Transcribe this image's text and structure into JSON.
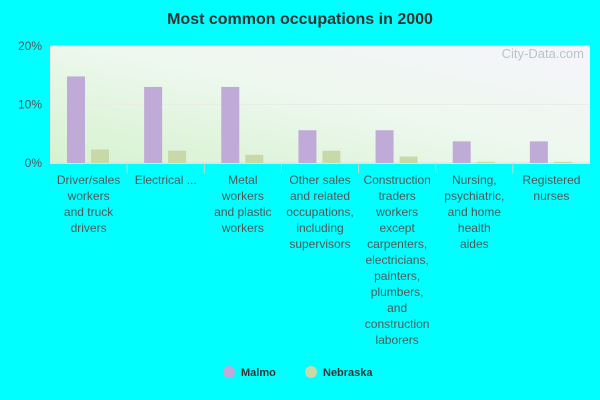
{
  "chart_data": {
    "type": "bar",
    "title": "Most common occupations in 2000",
    "watermark": "City-Data.com",
    "categories": [
      [
        "Driver/sales",
        "workers",
        "and truck",
        "drivers"
      ],
      [
        "Electrical ..."
      ],
      [
        "Metal",
        "workers",
        "and plastic",
        "workers"
      ],
      [
        "Other sales",
        "and related",
        "occupations,",
        "including",
        "supervisors"
      ],
      [
        "Construction",
        "traders",
        "workers",
        "except",
        "carpenters,",
        "electricians,",
        "painters,",
        "plumbers,",
        "and",
        "construction",
        "laborers"
      ],
      [
        "Nursing,",
        "psychiatric,",
        "and home",
        "health",
        "aides"
      ],
      [
        "Registered",
        "nurses"
      ]
    ],
    "series": [
      {
        "name": "Malmo",
        "color": "#c0aad8",
        "values": [
          14.8,
          13.0,
          13.0,
          5.6,
          5.6,
          3.7,
          3.7
        ]
      },
      {
        "name": "Nebraska",
        "color": "#c8d8a8",
        "values": [
          2.3,
          2.1,
          1.4,
          2.1,
          1.1,
          0.2,
          0.2
        ]
      }
    ],
    "ylim": [
      0,
      20
    ],
    "yticks": [
      "0%",
      "10%",
      "20%"
    ],
    "ytick_values": [
      0,
      10,
      20
    ],
    "legend_position": "bottom",
    "grid": true
  }
}
